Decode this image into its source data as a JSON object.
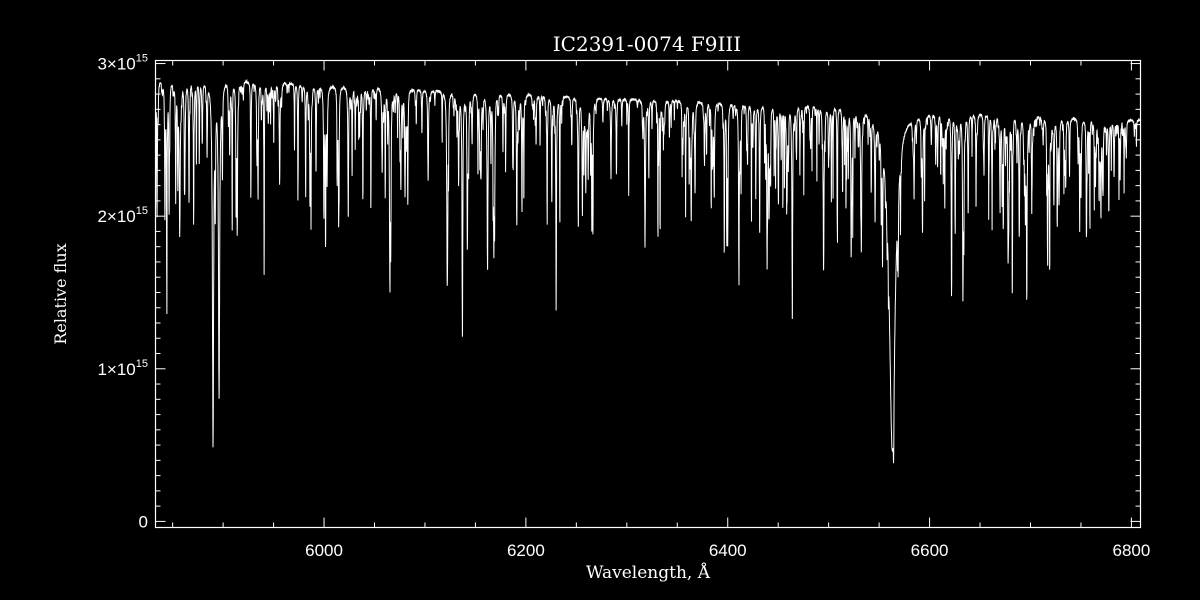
{
  "chart_data": {
    "type": "line",
    "title": "IC2391-0074   F9III",
    "xlabel": "Wavelength, Å",
    "ylabel": "Relative flux",
    "xlim": [
      5833,
      6809
    ],
    "ylim": [
      -40000000000000.0,
      3020000000000000.0
    ],
    "x_ticks": [
      6000,
      6200,
      6400,
      6600,
      6800
    ],
    "x_tick_labels": [
      "6000",
      "6200",
      "6400",
      "6600",
      "6800"
    ],
    "x_minor_step": 50,
    "y_ticks": [
      0,
      1000000000000000.0,
      2000000000000000.0,
      3000000000000000.0
    ],
    "y_tick_labels": [
      {
        "mant": "0",
        "exp": ""
      },
      {
        "mant": "1×10",
        "exp": "15"
      },
      {
        "mant": "2×10",
        "exp": "15"
      },
      {
        "mant": "3×10",
        "exp": "15"
      }
    ],
    "y_minor_step": 100000000000000.0,
    "grid": false,
    "colors": {
      "background": "#000000",
      "line": "#ffffff",
      "axes": "#ffffff"
    },
    "continuum": [
      [
        5833,
        2900000000000000.0
      ],
      [
        5900,
        2900000000000000.0
      ],
      [
        6000,
        2860000000000000.0
      ],
      [
        6100,
        2830000000000000.0
      ],
      [
        6200,
        2800000000000000.0
      ],
      [
        6300,
        2770000000000000.0
      ],
      [
        6400,
        2750000000000000.0
      ],
      [
        6500,
        2730000000000000.0
      ],
      [
        6545,
        2710000000000000.0
      ],
      [
        6600,
        2690000000000000.0
      ],
      [
        6700,
        2660000000000000.0
      ],
      [
        6800,
        2630000000000000.0
      ]
    ],
    "absorption_lines": [
      {
        "wavelength": 5857,
        "min_flux": 1900000000000000.0,
        "width": 0.6
      },
      {
        "wavelength": 5862,
        "min_flux": 2250000000000000.0,
        "width": 0.5
      },
      {
        "wavelength": 5890,
        "min_flux": 580000000000000.0,
        "width": 0.7
      },
      {
        "wavelength": 5896,
        "min_flux": 850000000000000.0,
        "width": 0.7
      },
      {
        "wavelength": 5914,
        "min_flux": 1950000000000000.0,
        "width": 0.4
      },
      {
        "wavelength": 5956,
        "min_flux": 2220000000000000.0,
        "width": 0.4
      },
      {
        "wavelength": 6003,
        "min_flux": 2250000000000000.0,
        "width": 0.4
      },
      {
        "wavelength": 6024,
        "min_flux": 2030000000000000.0,
        "width": 0.4
      },
      {
        "wavelength": 6065,
        "min_flux": 2050000000000000.0,
        "width": 0.4
      },
      {
        "wavelength": 6122,
        "min_flux": 1720000000000000.0,
        "width": 0.5
      },
      {
        "wavelength": 6137,
        "min_flux": 1950000000000000.0,
        "width": 0.4
      },
      {
        "wavelength": 6142,
        "min_flux": 1850000000000000.0,
        "width": 0.4
      },
      {
        "wavelength": 6162,
        "min_flux": 1650000000000000.0,
        "width": 0.5
      },
      {
        "wavelength": 6191,
        "min_flux": 1950000000000000.0,
        "width": 0.4
      },
      {
        "wavelength": 6230,
        "min_flux": 2050000000000000.0,
        "width": 0.4
      },
      {
        "wavelength": 6252,
        "min_flux": 2000000000000000.0,
        "width": 0.4
      },
      {
        "wavelength": 6256,
        "min_flux": 2050000000000000.0,
        "width": 0.4
      },
      {
        "wavelength": 6318,
        "min_flux": 2050000000000000.0,
        "width": 0.4
      },
      {
        "wavelength": 6400,
        "min_flux": 1850000000000000.0,
        "width": 0.4
      },
      {
        "wavelength": 6411,
        "min_flux": 1950000000000000.0,
        "width": 0.4
      },
      {
        "wavelength": 6439,
        "min_flux": 1750000000000000.0,
        "width": 0.4
      },
      {
        "wavelength": 6464,
        "min_flux": 1530000000000000.0,
        "width": 0.4
      },
      {
        "wavelength": 6495,
        "min_flux": 1800000000000000.0,
        "width": 0.5
      },
      {
        "wavelength": 6546,
        "min_flux": 2050000000000000.0,
        "width": 0.4
      },
      {
        "wavelength": 6563,
        "min_flux": 500000000000000.0,
        "width": 3.5
      },
      {
        "wavelength": 6593,
        "min_flux": 1950000000000000.0,
        "width": 0.4
      },
      {
        "wavelength": 6633,
        "min_flux": 2200000000000000.0,
        "width": 0.4
      },
      {
        "wavelength": 6678,
        "min_flux": 2050000000000000.0,
        "width": 0.4
      },
      {
        "wavelength": 6717,
        "min_flux": 1750000000000000.0,
        "width": 0.4
      },
      {
        "wavelength": 6750,
        "min_flux": 2250000000000000.0,
        "width": 0.4
      },
      {
        "wavelength": 6768,
        "min_flux": 2150000000000000.0,
        "width": 0.4
      }
    ]
  }
}
